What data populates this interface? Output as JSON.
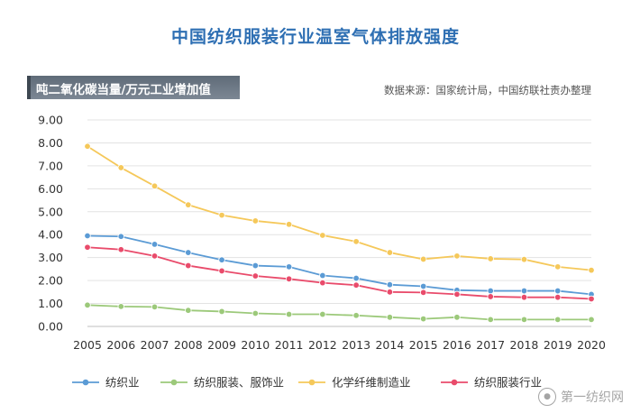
{
  "title": "中国纺织服装行业温室气体排放强度",
  "unit_label": "吨二氧化碳当量/万元工业增加值",
  "source": "数据来源：国家统计局，中国纺联社责办整理",
  "watermark": "第一纺织网",
  "watermark_icon": "weibo-icon",
  "chart_data": {
    "type": "line",
    "title": "中国纺织服装行业温室气体排放强度",
    "ylabel": "吨二氧化碳当量/万元工业增加值",
    "xlabel": "",
    "ylim": [
      0,
      9
    ],
    "yticks": [
      "0.00",
      "1.00",
      "2.00",
      "3.00",
      "4.00",
      "5.00",
      "6.00",
      "7.00",
      "8.00",
      "9.00"
    ],
    "grid": true,
    "legend_position": "bottom",
    "x": [
      "2005",
      "2006",
      "2007",
      "2008",
      "2009",
      "2010",
      "2011",
      "2012",
      "2013",
      "2014",
      "2015",
      "2016",
      "2017",
      "2018",
      "2019",
      "2020"
    ],
    "series": [
      {
        "name": "纺织业",
        "color": "#5b9bd5",
        "values": [
          3.95,
          3.92,
          3.58,
          3.22,
          2.9,
          2.65,
          2.6,
          2.22,
          2.1,
          1.82,
          1.75,
          1.58,
          1.55,
          1.55,
          1.55,
          1.4
        ]
      },
      {
        "name": "纺织服装、服饰业",
        "color": "#9cc97a",
        "values": [
          0.93,
          0.87,
          0.85,
          0.7,
          0.65,
          0.57,
          0.53,
          0.53,
          0.48,
          0.4,
          0.33,
          0.4,
          0.3,
          0.3,
          0.3,
          0.3
        ]
      },
      {
        "name": "化学纤维制造业",
        "color": "#f5c85a",
        "values": [
          7.85,
          6.92,
          6.12,
          5.3,
          4.85,
          4.6,
          4.45,
          3.97,
          3.7,
          3.22,
          2.93,
          3.07,
          2.95,
          2.92,
          2.6,
          2.45
        ]
      },
      {
        "name": "纺织服装行业",
        "color": "#e94b6b",
        "values": [
          3.45,
          3.35,
          3.07,
          2.65,
          2.42,
          2.2,
          2.07,
          1.9,
          1.8,
          1.5,
          1.48,
          1.4,
          1.3,
          1.27,
          1.27,
          1.2
        ]
      }
    ]
  }
}
